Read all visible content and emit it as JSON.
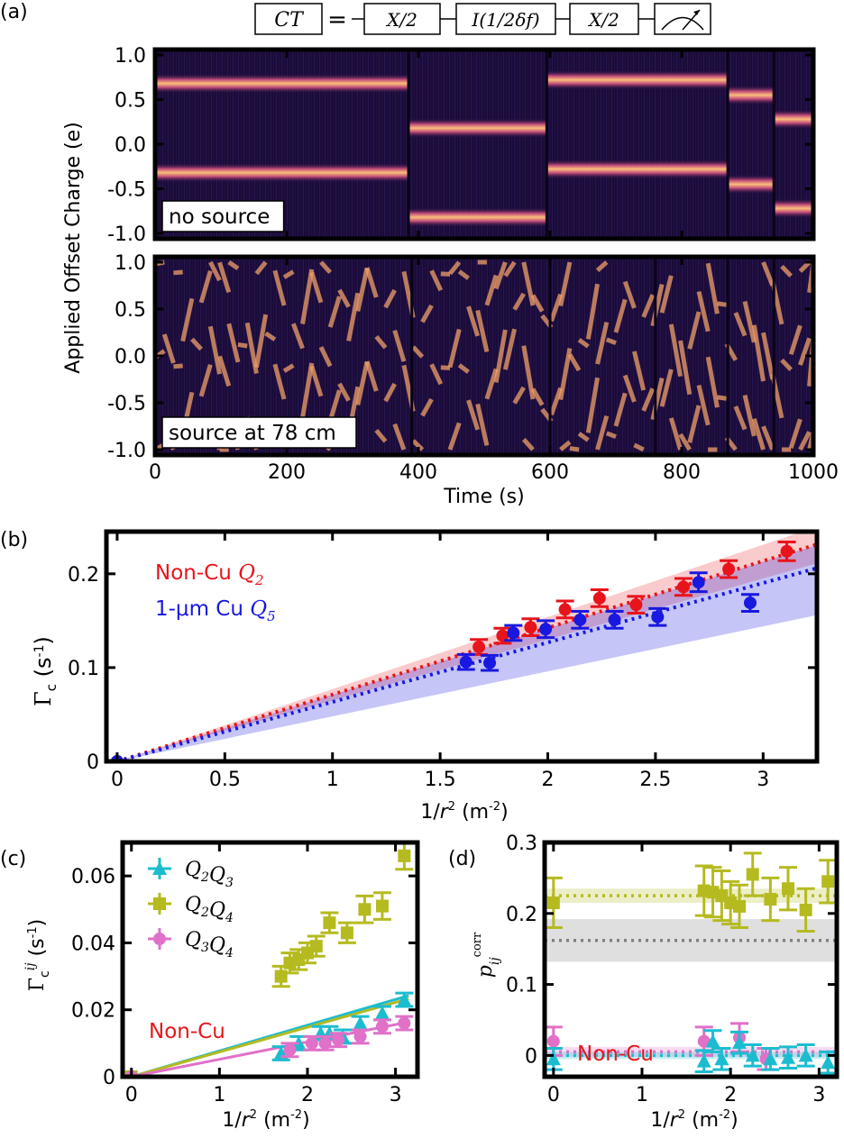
{
  "panel_labels": {
    "a": "(a)",
    "b": "(b)",
    "c": "(c)",
    "d": "(d)"
  },
  "circuit": {
    "ct": "CT",
    "equals": "=",
    "x1": "X/2",
    "idle": "I(1/2δf)",
    "x2": "X/2",
    "measure_icon": "meter-icon"
  },
  "colors": {
    "red": "#e8141b",
    "blue": "#1818e0",
    "olive": "#b5ba1f",
    "cyan": "#1cbcd0",
    "pink": "#e070c8",
    "dark": "#1a0c3a",
    "orange": "#f7b06a"
  },
  "chart_data": [
    {
      "id": "a",
      "type": "heatmap",
      "ylabel": "Applied Offset Charge (e)",
      "xlabel": "Time (s)",
      "xlim": [
        0,
        1000
      ],
      "ylim": [
        -1.0,
        1.0
      ],
      "xticks": [
        "0",
        "200",
        "400",
        "600",
        "800",
        "1000"
      ],
      "yticks": [
        "-1.0",
        "-0.5",
        "0.0",
        "0.5",
        "1.0"
      ],
      "panels": [
        {
          "label": "no source",
          "segments": [
            {
              "t0": 0,
              "t1": 385,
              "bands": [
                0.68,
                -0.32
              ]
            },
            {
              "t0": 385,
              "t1": 595,
              "bands": [
                0.18,
                -0.82
              ]
            },
            {
              "t0": 595,
              "t1": 870,
              "bands": [
                0.72,
                -0.28
              ]
            },
            {
              "t0": 870,
              "t1": 940,
              "bands": [
                0.55,
                -0.45
              ]
            },
            {
              "t0": 940,
              "t1": 1000,
              "bands": [
                0.28,
                -0.72
              ]
            }
          ]
        },
        {
          "label": "source at 78 cm"
        }
      ]
    },
    {
      "id": "b",
      "type": "scatter",
      "xlabel": "1/r² (m⁻²)",
      "ylabel": "Γc (s⁻¹)",
      "xlim": [
        -0.05,
        3.25
      ],
      "ylim": [
        0,
        0.245
      ],
      "xticks": [
        0,
        0.5,
        1,
        1.5,
        2,
        2.5,
        3
      ],
      "yticks": [
        0,
        0.1,
        0.2
      ],
      "series": [
        {
          "name": "Non-Cu",
          "qubit": "Q2",
          "color": "red",
          "slope": 0.0712,
          "band": [
            0.065,
            0.077
          ],
          "x": [
            0,
            1.68,
            1.79,
            1.92,
            2.08,
            2.24,
            2.41,
            2.63,
            2.84,
            3.11
          ],
          "y": [
            0,
            0.122,
            0.134,
            0.143,
            0.162,
            0.174,
            0.167,
            0.186,
            0.205,
            0.224
          ],
          "err": [
            0,
            0.008,
            0.008,
            0.009,
            0.009,
            0.009,
            0.009,
            0.009,
            0.009,
            0.01
          ]
        },
        {
          "name": "1-μm Cu",
          "qubit": "Q5",
          "color": "blue",
          "slope": 0.0634,
          "band": [
            0.048,
            0.071
          ],
          "x": [
            0,
            1.62,
            1.73,
            1.84,
            1.99,
            2.15,
            2.31,
            2.51,
            2.7,
            2.94
          ],
          "y": [
            0,
            0.106,
            0.105,
            0.137,
            0.141,
            0.151,
            0.151,
            0.154,
            0.191,
            0.169
          ],
          "err": [
            0,
            0.008,
            0.008,
            0.008,
            0.009,
            0.009,
            0.009,
            0.009,
            0.01,
            0.009
          ]
        }
      ]
    },
    {
      "id": "c",
      "type": "scatter",
      "xlabel": "1/r² (m⁻²)",
      "ylabel": "Γc^ij (s⁻¹)",
      "xlim": [
        -0.1,
        3.25
      ],
      "ylim": [
        0,
        0.07
      ],
      "xticks": [
        0,
        1,
        2,
        3
      ],
      "yticks": [
        0,
        0.02,
        0.04,
        0.06
      ],
      "annotation": "Non-Cu",
      "series": [
        {
          "name": "Q2Q3",
          "color": "cyan",
          "marker": "triangle",
          "slope": 0.0077,
          "x": [
            0,
            1.7,
            1.9,
            2.15,
            2.25,
            2.4,
            2.6,
            2.85,
            3.1
          ],
          "y": [
            0,
            0.007,
            0.01,
            0.013,
            0.013,
            0.012,
            0.016,
            0.019,
            0.023
          ],
          "err": [
            0,
            0.002,
            0.002,
            0.002,
            0.002,
            0.002,
            0.002,
            0.002,
            0.002
          ]
        },
        {
          "name": "Q2Q4",
          "color": "olive",
          "marker": "square",
          "slope": 0.0074,
          "x": [
            0,
            1.7,
            1.8,
            1.9,
            2.0,
            2.1,
            2.25,
            2.45,
            2.65,
            2.85,
            3.1
          ],
          "y": [
            0,
            0.03,
            0.034,
            0.035,
            0.037,
            0.039,
            0.046,
            0.043,
            0.05,
            0.051,
            0.066
          ],
          "err": [
            0,
            0.003,
            0.003,
            0.003,
            0.003,
            0.003,
            0.003,
            0.003,
            0.004,
            0.004,
            0.004
          ]
        },
        {
          "name": "Q3Q4",
          "color": "pink",
          "marker": "circle",
          "slope": 0.0052,
          "x": [
            0,
            1.8,
            2.05,
            2.2,
            2.35,
            2.6,
            2.85,
            3.1
          ],
          "y": [
            0,
            0.008,
            0.01,
            0.01,
            0.011,
            0.012,
            0.015,
            0.016
          ],
          "err": [
            0,
            0.002,
            0.002,
            0.002,
            0.002,
            0.002,
            0.002,
            0.002
          ]
        }
      ]
    },
    {
      "id": "d",
      "type": "scatter",
      "xlabel": "1/r² (m⁻²)",
      "ylabel": "p_ij^corr",
      "xlim": [
        -0.1,
        3.2
      ],
      "ylim": [
        -0.03,
        0.3
      ],
      "xticks": [
        0,
        1,
        2,
        3
      ],
      "yticks": [
        0,
        0.1,
        0.2,
        0.3
      ],
      "annotation": "Non-Cu",
      "reference_lines": [
        {
          "color": "olive",
          "value": 0.225,
          "band": [
            0.215,
            0.235
          ]
        },
        {
          "color": "gray",
          "value": 0.162,
          "band": [
            0.132,
            0.192
          ]
        },
        {
          "color": "pink",
          "value": 0.005,
          "band": [
            -0.002,
            0.012
          ]
        },
        {
          "color": "cyan",
          "value": 0.0,
          "band": [
            -0.005,
            0.005
          ]
        }
      ],
      "series": [
        {
          "name": "Q2Q4",
          "color": "olive",
          "marker": "square",
          "x": [
            0,
            1.7,
            1.8,
            1.9,
            2.0,
            2.1,
            2.25,
            2.45,
            2.65,
            2.85,
            3.1
          ],
          "y": [
            0.215,
            0.232,
            0.23,
            0.225,
            0.215,
            0.21,
            0.255,
            0.22,
            0.235,
            0.205,
            0.245
          ],
          "err": [
            0.035,
            0.035,
            0.035,
            0.035,
            0.03,
            0.03,
            0.03,
            0.03,
            0.03,
            0.03,
            0.03
          ]
        },
        {
          "name": "Q3Q4",
          "color": "pink",
          "marker": "circle",
          "x": [
            0,
            1.7,
            2.1,
            2.4
          ],
          "y": [
            0.02,
            0.02,
            0.025,
            -0.005
          ],
          "err": [
            0.02,
            0.02,
            0.02,
            0.015
          ]
        },
        {
          "name": "Q2Q3",
          "color": "cyan",
          "marker": "triangle",
          "x": [
            0,
            1.7,
            1.8,
            1.9,
            2.1,
            2.25,
            2.45,
            2.65,
            2.85,
            3.1
          ],
          "y": [
            -0.005,
            -0.008,
            0.02,
            -0.005,
            0.018,
            0.0,
            -0.005,
            -0.003,
            0.0,
            -0.01
          ],
          "err": [
            0.015,
            0.015,
            0.015,
            0.015,
            0.015,
            0.015,
            0.015,
            0.015,
            0.015,
            0.015
          ]
        }
      ]
    }
  ]
}
